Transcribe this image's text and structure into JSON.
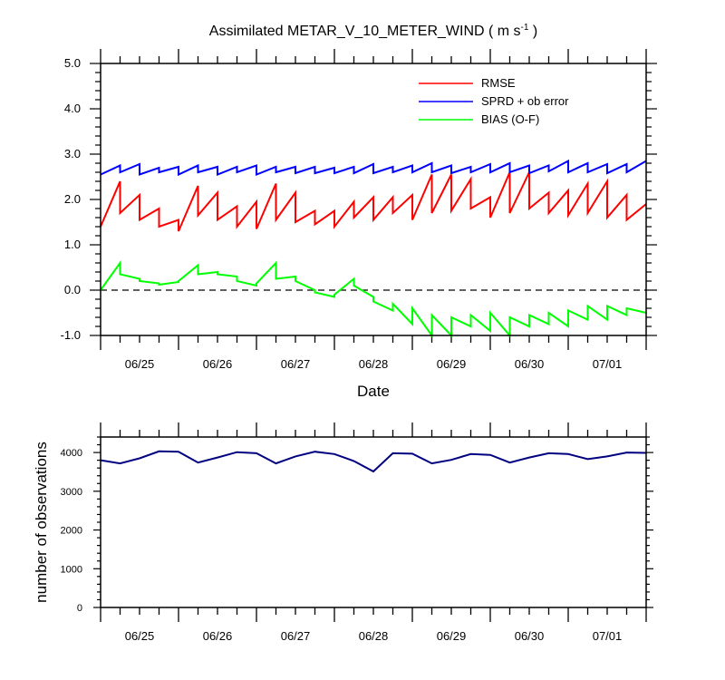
{
  "chart_data": [
    {
      "type": "line",
      "title": "Assimilated METAR_V_10_METER_WIND ( m s",
      "title_sup": "-1",
      "title_close": " )",
      "xlabel": "Date",
      "ylabel": "",
      "xlim": [
        0,
        7
      ],
      "ylim": [
        -1.0,
        5.0
      ],
      "yticks": [
        "5.0",
        "4.0",
        "3.0",
        "2.0",
        "1.0",
        "0.0",
        "-1.0"
      ],
      "ytick_values": [
        5.0,
        4.0,
        3.0,
        2.0,
        1.0,
        0.0,
        -1.0
      ],
      "xticks": [
        "06/25",
        "06/26",
        "06/27",
        "06/28",
        "06/29",
        "06/30",
        "07/01"
      ],
      "xtick_values": [
        0.5,
        1.5,
        2.5,
        3.5,
        4.5,
        5.5,
        6.5
      ],
      "zero_line": {
        "y": 0.0,
        "style": "dashed"
      },
      "legend": {
        "placement": "top-right"
      },
      "series": [
        {
          "name": "RMSE",
          "color": "#ff0000",
          "x": [
            0,
            0.25,
            0.25,
            0.5,
            0.5,
            0.75,
            0.75,
            1.0,
            1.0,
            1.25,
            1.25,
            1.5,
            1.5,
            1.75,
            1.75,
            2.0,
            2.0,
            2.25,
            2.25,
            2.5,
            2.5,
            2.75,
            2.75,
            3.0,
            3.0,
            3.25,
            3.25,
            3.5,
            3.5,
            3.75,
            3.75,
            4.0,
            4.0,
            4.25,
            4.25,
            4.5,
            4.5,
            4.75,
            4.75,
            5.0,
            5.0,
            5.25,
            5.25,
            5.5,
            5.5,
            5.75,
            5.75,
            6.0,
            6.0,
            6.25,
            6.25,
            6.5,
            6.5,
            6.75,
            6.75,
            7.0
          ],
          "values": [
            1.4,
            2.4,
            1.7,
            2.1,
            1.55,
            1.8,
            1.4,
            1.55,
            1.3,
            2.3,
            1.65,
            2.15,
            1.55,
            1.85,
            1.4,
            1.95,
            1.35,
            2.35,
            1.55,
            2.15,
            1.5,
            1.75,
            1.45,
            1.75,
            1.4,
            1.95,
            1.6,
            2.05,
            1.55,
            2.05,
            1.7,
            2.1,
            1.55,
            2.55,
            1.7,
            2.55,
            1.75,
            2.45,
            1.8,
            2.05,
            1.6,
            2.6,
            1.7,
            2.6,
            1.8,
            2.15,
            1.7,
            2.2,
            1.65,
            2.35,
            1.7,
            2.4,
            1.6,
            2.1,
            1.55,
            1.9
          ]
        },
        {
          "name": "SPRD + ob error",
          "color": "#0000ff",
          "x": [
            0,
            0.25,
            0.25,
            0.5,
            0.5,
            0.75,
            0.75,
            1.0,
            1.0,
            1.25,
            1.25,
            1.5,
            1.5,
            1.75,
            1.75,
            2.0,
            2.0,
            2.25,
            2.25,
            2.5,
            2.5,
            2.75,
            2.75,
            3.0,
            3.0,
            3.25,
            3.25,
            3.5,
            3.5,
            3.75,
            3.75,
            4.0,
            4.0,
            4.25,
            4.25,
            4.5,
            4.5,
            4.75,
            4.75,
            5.0,
            5.0,
            5.25,
            5.25,
            5.5,
            5.5,
            5.75,
            5.75,
            6.0,
            6.0,
            6.25,
            6.25,
            6.5,
            6.5,
            6.75,
            6.75,
            7.0
          ],
          "values": [
            2.55,
            2.75,
            2.6,
            2.78,
            2.55,
            2.7,
            2.6,
            2.72,
            2.55,
            2.75,
            2.6,
            2.72,
            2.55,
            2.72,
            2.6,
            2.75,
            2.55,
            2.72,
            2.6,
            2.72,
            2.58,
            2.72,
            2.58,
            2.7,
            2.58,
            2.72,
            2.58,
            2.78,
            2.58,
            2.72,
            2.6,
            2.75,
            2.6,
            2.8,
            2.6,
            2.75,
            2.58,
            2.72,
            2.6,
            2.78,
            2.6,
            2.8,
            2.6,
            2.75,
            2.58,
            2.75,
            2.62,
            2.85,
            2.6,
            2.8,
            2.6,
            2.78,
            2.58,
            2.78,
            2.6,
            2.85
          ]
        },
        {
          "name": "BIAS (O-F)",
          "color": "#00ff00",
          "x": [
            0,
            0.25,
            0.25,
            0.5,
            0.5,
            0.75,
            0.75,
            1.0,
            1.0,
            1.25,
            1.25,
            1.5,
            1.5,
            1.75,
            1.75,
            2.0,
            2.0,
            2.25,
            2.25,
            2.5,
            2.5,
            2.75,
            2.75,
            3.0,
            3.0,
            3.25,
            3.25,
            3.5,
            3.5,
            3.75,
            3.75,
            4.0,
            4.0,
            4.25,
            4.25,
            4.5,
            4.5,
            4.75,
            4.75,
            5.0,
            5.0,
            5.25,
            5.25,
            5.5,
            5.5,
            5.75,
            5.75,
            6.0,
            6.0,
            6.25,
            6.25,
            6.5,
            6.5,
            6.75,
            6.75,
            7.0
          ],
          "values": [
            0.0,
            0.6,
            0.35,
            0.25,
            0.2,
            0.15,
            0.12,
            0.18,
            0.2,
            0.55,
            0.35,
            0.4,
            0.35,
            0.3,
            0.2,
            0.1,
            0.15,
            0.6,
            0.25,
            0.3,
            0.2,
            0.0,
            -0.05,
            -0.15,
            -0.1,
            0.25,
            0.1,
            -0.15,
            -0.25,
            -0.45,
            -0.3,
            -0.75,
            -0.4,
            -1.0,
            -0.55,
            -1.05,
            -0.6,
            -0.8,
            -0.55,
            -0.9,
            -0.5,
            -1.0,
            -0.6,
            -0.8,
            -0.55,
            -0.75,
            -0.5,
            -0.8,
            -0.45,
            -0.65,
            -0.35,
            -0.65,
            -0.35,
            -0.55,
            -0.4,
            -0.5
          ]
        }
      ]
    },
    {
      "type": "line",
      "ylabel": "number of observations",
      "xlim": [
        0,
        7
      ],
      "ylim": [
        0,
        4400
      ],
      "yticks": [
        "4000",
        "3000",
        "2000",
        "1000",
        "0"
      ],
      "ytick_values": [
        4000,
        3000,
        2000,
        1000,
        0
      ],
      "xticks": [
        "06/25",
        "06/26",
        "06/27",
        "06/28",
        "06/29",
        "06/30",
        "07/01"
      ],
      "xtick_values": [
        0.5,
        1.5,
        2.5,
        3.5,
        4.5,
        5.5,
        6.5
      ],
      "series": [
        {
          "color": "#000080",
          "x": [
            0,
            0.25,
            0.5,
            0.75,
            1.0,
            1.25,
            1.5,
            1.75,
            2.0,
            2.25,
            2.5,
            2.75,
            3.0,
            3.25,
            3.5,
            3.75,
            4.0,
            4.25,
            4.5,
            4.75,
            5.0,
            5.25,
            5.5,
            5.75,
            6.0,
            6.25,
            6.5,
            6.75,
            7.0
          ],
          "values": [
            3800,
            3720,
            3850,
            4030,
            4020,
            3740,
            3870,
            4010,
            3980,
            3720,
            3900,
            4020,
            3960,
            3780,
            3510,
            3980,
            3970,
            3720,
            3810,
            3960,
            3940,
            3740,
            3870,
            3980,
            3960,
            3830,
            3900,
            4000,
            3990
          ]
        }
      ]
    }
  ]
}
